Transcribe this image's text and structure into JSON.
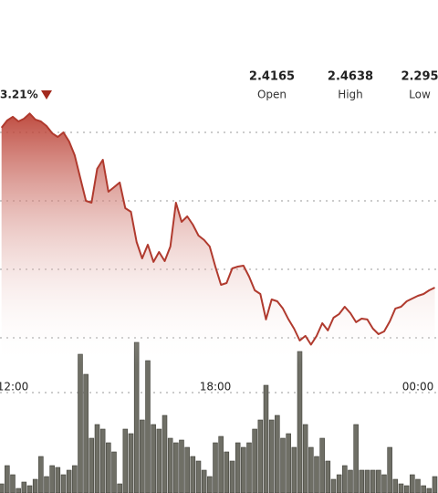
{
  "chart_data": {
    "type": "line",
    "change": "3.21%",
    "stats": [
      {
        "value": "2.4165",
        "label": "Open"
      },
      {
        "value": "2.4638",
        "label": "High"
      },
      {
        "value": "2.295",
        "label": "Low"
      }
    ],
    "x": [
      700,
      710,
      720,
      730,
      740,
      750,
      760,
      770,
      780,
      790,
      800,
      810,
      820,
      830,
      840,
      850,
      860,
      870,
      880,
      890,
      900,
      910,
      920,
      930,
      940,
      950,
      960,
      970,
      980,
      990,
      1000,
      1010,
      1020,
      1030,
      1040,
      1050,
      1060,
      1070,
      1080,
      1090,
      1100,
      1110,
      1120,
      1130,
      1140,
      1150,
      1160,
      1170,
      1180,
      1190,
      1200,
      1210,
      1220,
      1230,
      1240,
      1250,
      1260,
      1270,
      1280,
      1290,
      1300,
      1310,
      1320,
      1330,
      1340,
      1350,
      1360,
      1370,
      1380,
      1390,
      1400,
      1410,
      1420,
      1430,
      1440,
      1450,
      1460,
      1470
    ],
    "xlim": [
      697.3,
      1475.7
    ],
    "xticks": [
      {
        "value": 720,
        "label": "12:00"
      },
      {
        "value": 1080,
        "label": "18:00"
      },
      {
        "value": 1440,
        "label": "00:00"
      }
    ],
    "ylim": [
      2.28,
      2.5467
    ],
    "yticks": [
      2.3,
      2.35,
      2.4,
      2.45
    ],
    "grid": true,
    "series": [
      {
        "color": "#b03a2e",
        "values": [
          2.4534,
          2.4587,
          2.4614,
          2.458,
          2.46,
          2.4638,
          2.4594,
          2.458,
          2.4547,
          2.4494,
          2.4467,
          2.45,
          2.4434,
          2.4334,
          2.4167,
          2.4,
          2.3987,
          2.4234,
          2.43,
          2.4067,
          2.41,
          2.4134,
          2.3947,
          2.392,
          2.37,
          2.358,
          2.368,
          2.3554,
          2.3627,
          2.356,
          2.3667,
          2.3987,
          2.3847,
          2.3887,
          2.3827,
          2.3747,
          2.3714,
          2.3667,
          2.352,
          2.3387,
          2.34,
          2.3507,
          2.352,
          2.3527,
          2.3447,
          2.3347,
          2.332,
          2.3134,
          2.328,
          2.3267,
          2.3214,
          2.3134,
          2.3067,
          2.298,
          2.3014,
          2.295,
          2.3014,
          2.3107,
          2.3054,
          2.3147,
          2.3174,
          2.3227,
          2.318,
          2.3114,
          2.314,
          2.3134,
          2.3067,
          2.3027,
          2.3047,
          2.312,
          2.3214,
          2.3227,
          2.3267,
          2.3287,
          2.3307,
          2.332,
          2.3347,
          2.3367
        ]
      }
    ],
    "volume": {
      "color": "#6f6f66",
      "vlim": [
        0,
        180
      ],
      "values": [
        10,
        30,
        20,
        5,
        12,
        8,
        15,
        40,
        18,
        30,
        28,
        20,
        25,
        30,
        152,
        130,
        60,
        75,
        70,
        55,
        45,
        10,
        70,
        65,
        165,
        80,
        145,
        75,
        70,
        85,
        60,
        55,
        58,
        50,
        40,
        35,
        25,
        18,
        55,
        62,
        45,
        35,
        55,
        50,
        55,
        70,
        80,
        118,
        80,
        85,
        60,
        65,
        50,
        155,
        75,
        50,
        40,
        60,
        35,
        15,
        20,
        30,
        25,
        75,
        25,
        25,
        25,
        25,
        20,
        50,
        15,
        10,
        8,
        20,
        15,
        8,
        5,
        18
      ]
    }
  }
}
